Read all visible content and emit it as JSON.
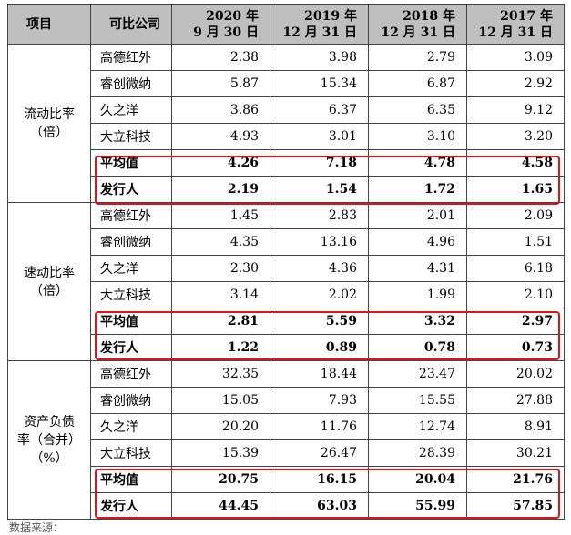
{
  "header": {
    "item": "项目",
    "company": "可比公司",
    "years": [
      {
        "line1": "2020 年",
        "line2": "9 月 30 日"
      },
      {
        "line1": "2019 年",
        "line2": "12 月 31 日"
      },
      {
        "line1": "2018 年",
        "line2": "12 月 31 日"
      },
      {
        "line1": "2017 年",
        "line2": "12 月 31 日"
      }
    ]
  },
  "sections": [
    {
      "metric_line1": "流动比率",
      "metric_line2": "（倍）",
      "metric_line3": "",
      "rows": [
        {
          "company": "高德红外",
          "values": [
            "2.38",
            "3.98",
            "2.79",
            "3.09"
          ]
        },
        {
          "company": "睿创微纳",
          "values": [
            "5.87",
            "15.34",
            "6.87",
            "2.92"
          ]
        },
        {
          "company": "久之洋",
          "values": [
            "3.86",
            "6.37",
            "6.35",
            "9.12"
          ]
        },
        {
          "company": "大立科技",
          "values": [
            "4.93",
            "3.01",
            "3.10",
            "3.20"
          ]
        },
        {
          "company": "平均值",
          "values": [
            "4.26",
            "7.18",
            "4.78",
            "4.58"
          ]
        },
        {
          "company": "发行人",
          "values": [
            "2.19",
            "1.54",
            "1.72",
            "1.65"
          ]
        }
      ]
    },
    {
      "metric_line1": "速动比率",
      "metric_line2": "（倍）",
      "metric_line3": "",
      "rows": [
        {
          "company": "高德红外",
          "values": [
            "1.45",
            "2.83",
            "2.01",
            "2.09"
          ]
        },
        {
          "company": "睿创微纳",
          "values": [
            "4.35",
            "13.16",
            "4.96",
            "1.51"
          ]
        },
        {
          "company": "久之洋",
          "values": [
            "2.30",
            "4.36",
            "4.31",
            "6.18"
          ]
        },
        {
          "company": "大立科技",
          "values": [
            "3.14",
            "2.02",
            "1.99",
            "2.10"
          ]
        },
        {
          "company": "平均值",
          "values": [
            "2.81",
            "5.59",
            "3.32",
            "2.97"
          ]
        },
        {
          "company": "发行人",
          "values": [
            "1.22",
            "0.89",
            "0.78",
            "0.73"
          ]
        }
      ]
    },
    {
      "metric_line1": "资产负债",
      "metric_line2": "率（合并）",
      "metric_line3": "（%）",
      "rows": [
        {
          "company": "高德红外",
          "values": [
            "32.35",
            "18.44",
            "23.47",
            "20.02"
          ]
        },
        {
          "company": "睿创微纳",
          "values": [
            "15.05",
            "7.93",
            "15.55",
            "27.88"
          ]
        },
        {
          "company": "久之洋",
          "values": [
            "20.20",
            "11.76",
            "12.74",
            "8.91"
          ]
        },
        {
          "company": "大立科技",
          "values": [
            "15.39",
            "26.47",
            "28.39",
            "30.21"
          ]
        },
        {
          "company": "平均值",
          "values": [
            "20.75",
            "16.15",
            "20.04",
            "21.76"
          ]
        },
        {
          "company": "发行人",
          "values": [
            "44.45",
            "63.03",
            "55.99",
            "57.85"
          ]
        }
      ]
    }
  ],
  "colors": {
    "header_bg": "#bfbfbf",
    "highlight_border": "#e0121a"
  },
  "footnote": "数据来源："
}
